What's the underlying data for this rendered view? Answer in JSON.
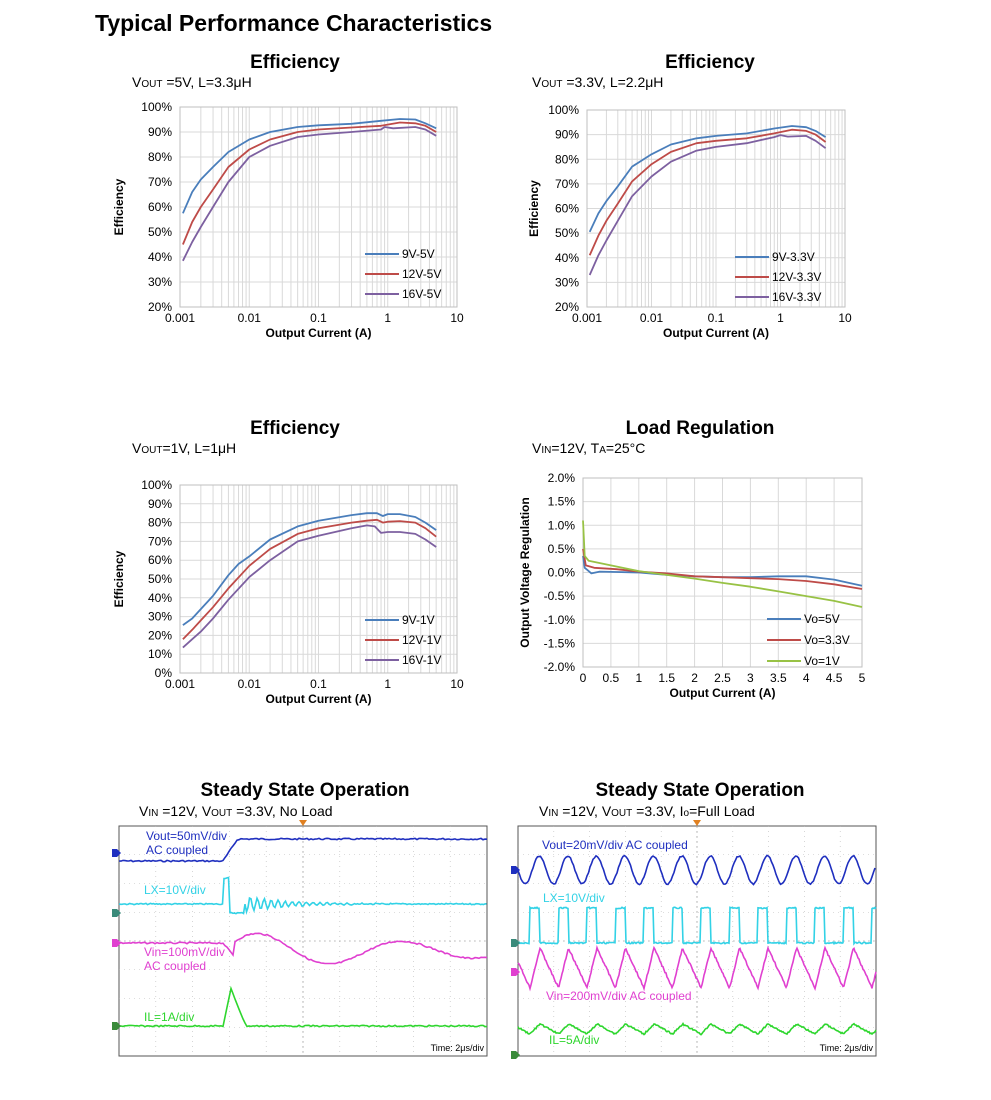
{
  "page_title": "Typical Performance Characteristics",
  "colors": {
    "blue": "#4a7ebb",
    "red": "#be4b48",
    "purple": "#7d60a0",
    "green": "#98c245",
    "grid": "#d9d9d9"
  },
  "chart_data": [
    {
      "id": "eff5v",
      "type": "line",
      "title": "Efficiency",
      "subtitle": "VOUT =5V, L=3.3μH",
      "xlabel": "Output Current (A)",
      "ylabel": "Efficiency",
      "xscale": "log",
      "xlim": [
        0.001,
        10
      ],
      "ylim": [
        20,
        100
      ],
      "xticks": [
        "0.001",
        "0.01",
        "0.1",
        "1",
        "10"
      ],
      "yticks": [
        "20%",
        "30%",
        "40%",
        "50%",
        "60%",
        "70%",
        "80%",
        "90%",
        "100%"
      ],
      "legend": "bottom-right",
      "series": [
        {
          "name": "9V-5V",
          "color": "#4a7ebb",
          "points": [
            [
              0.0011,
              57.5
            ],
            [
              0.0015,
              66
            ],
            [
              0.002,
              71
            ],
            [
              0.003,
              76
            ],
            [
              0.005,
              82
            ],
            [
              0.01,
              87
            ],
            [
              0.02,
              90
            ],
            [
              0.05,
              92
            ],
            [
              0.1,
              92.7
            ],
            [
              0.3,
              93.3
            ],
            [
              0.8,
              94.5
            ],
            [
              1.5,
              95.2
            ],
            [
              2.5,
              95
            ],
            [
              3.5,
              93.5
            ],
            [
              5,
              91.5
            ]
          ]
        },
        {
          "name": "12V-5V",
          "color": "#be4b48",
          "points": [
            [
              0.0011,
              45
            ],
            [
              0.0015,
              54
            ],
            [
              0.002,
              60
            ],
            [
              0.003,
              67
            ],
            [
              0.005,
              76
            ],
            [
              0.01,
              83
            ],
            [
              0.02,
              87
            ],
            [
              0.05,
              90
            ],
            [
              0.1,
              91
            ],
            [
              0.3,
              91.8
            ],
            [
              0.8,
              92.5
            ],
            [
              1.5,
              93.8
            ],
            [
              2.5,
              93.5
            ],
            [
              3.5,
              92.5
            ],
            [
              5,
              90
            ]
          ]
        },
        {
          "name": "16V-5V",
          "color": "#7d60a0",
          "points": [
            [
              0.0011,
              38.5
            ],
            [
              0.0015,
              46
            ],
            [
              0.002,
              52
            ],
            [
              0.003,
              60
            ],
            [
              0.005,
              70
            ],
            [
              0.01,
              80
            ],
            [
              0.02,
              84.5
            ],
            [
              0.05,
              88
            ],
            [
              0.1,
              89
            ],
            [
              0.3,
              90
            ],
            [
              0.8,
              91
            ],
            [
              0.9,
              92
            ],
            [
              1.2,
              91.5
            ],
            [
              2.5,
              92
            ],
            [
              3.5,
              91
            ],
            [
              5,
              88.5
            ]
          ]
        }
      ]
    },
    {
      "id": "eff33v",
      "type": "line",
      "title": "Efficiency",
      "subtitle": "VOUT =3.3V, L=2.2μH",
      "xlabel": "Output Current (A)",
      "ylabel": "Efficiency",
      "xscale": "log",
      "xlim": [
        0.001,
        10
      ],
      "ylim": [
        20,
        100
      ],
      "xticks": [
        "0.001",
        "0.01",
        "0.1",
        "1",
        "10"
      ],
      "yticks": [
        "20%",
        "30%",
        "40%",
        "50%",
        "60%",
        "70%",
        "80%",
        "90%",
        "100%"
      ],
      "legend": "bottom-right",
      "series": [
        {
          "name": "9V-3.3V",
          "color": "#4a7ebb",
          "points": [
            [
              0.0011,
              50.5
            ],
            [
              0.0015,
              58
            ],
            [
              0.002,
              63
            ],
            [
              0.003,
              69
            ],
            [
              0.005,
              77
            ],
            [
              0.01,
              82
            ],
            [
              0.02,
              86
            ],
            [
              0.05,
              88.5
            ],
            [
              0.1,
              89.5
            ],
            [
              0.3,
              90.5
            ],
            [
              0.8,
              92.5
            ],
            [
              1.5,
              93.5
            ],
            [
              2.5,
              93
            ],
            [
              3.5,
              91.5
            ],
            [
              5,
              89
            ]
          ]
        },
        {
          "name": "12V-3.3V",
          "color": "#be4b48",
          "points": [
            [
              0.0011,
              41
            ],
            [
              0.0015,
              49
            ],
            [
              0.002,
              55
            ],
            [
              0.003,
              62
            ],
            [
              0.005,
              71
            ],
            [
              0.01,
              78
            ],
            [
              0.02,
              83
            ],
            [
              0.05,
              86.5
            ],
            [
              0.1,
              87.5
            ],
            [
              0.3,
              88.5
            ],
            [
              0.8,
              90.5
            ],
            [
              1.5,
              92
            ],
            [
              2.5,
              91.5
            ],
            [
              3.5,
              90
            ],
            [
              5,
              87
            ]
          ]
        },
        {
          "name": "16V-3.3V",
          "color": "#7d60a0",
          "points": [
            [
              0.0011,
              33
            ],
            [
              0.0015,
              41
            ],
            [
              0.002,
              47
            ],
            [
              0.003,
              55
            ],
            [
              0.005,
              65
            ],
            [
              0.01,
              73
            ],
            [
              0.02,
              79
            ],
            [
              0.05,
              83.5
            ],
            [
              0.1,
              85
            ],
            [
              0.3,
              86.5
            ],
            [
              0.8,
              89
            ],
            [
              1.0,
              89.8
            ],
            [
              1.3,
              89.2
            ],
            [
              2.5,
              89.5
            ],
            [
              3.5,
              87.5
            ],
            [
              5,
              84.5
            ]
          ]
        }
      ]
    },
    {
      "id": "eff1v",
      "type": "line",
      "title": "Efficiency",
      "subtitle": "VOUT=1V, L=1μH",
      "xlabel": "Output Current (A)",
      "ylabel": "Efficiency",
      "xscale": "log",
      "xlim": [
        0.001,
        10
      ],
      "ylim": [
        0,
        100
      ],
      "xticks": [
        "0.001",
        "0.01",
        "0.1",
        "1",
        "10"
      ],
      "yticks": [
        "0%",
        "10%",
        "20%",
        "30%",
        "40%",
        "50%",
        "60%",
        "70%",
        "80%",
        "90%",
        "100%"
      ],
      "legend": "bottom-right",
      "series": [
        {
          "name": "9V-1V",
          "color": "#4a7ebb",
          "points": [
            [
              0.0011,
              25.5
            ],
            [
              0.0015,
              29
            ],
            [
              0.002,
              34
            ],
            [
              0.003,
              41
            ],
            [
              0.005,
              52
            ],
            [
              0.007,
              58
            ],
            [
              0.01,
              62
            ],
            [
              0.02,
              71
            ],
            [
              0.05,
              78
            ],
            [
              0.1,
              81
            ],
            [
              0.3,
              84
            ],
            [
              0.5,
              85
            ],
            [
              0.7,
              85
            ],
            [
              0.85,
              83.5
            ],
            [
              1.0,
              84.5
            ],
            [
              1.5,
              84.5
            ],
            [
              2.5,
              83
            ],
            [
              3.5,
              80
            ],
            [
              5,
              76
            ]
          ]
        },
        {
          "name": "12V-1V",
          "color": "#be4b48",
          "points": [
            [
              0.0011,
              18
            ],
            [
              0.0015,
              23
            ],
            [
              0.002,
              28
            ],
            [
              0.003,
              35
            ],
            [
              0.005,
              45
            ],
            [
              0.01,
              57
            ],
            [
              0.02,
              66
            ],
            [
              0.05,
              74
            ],
            [
              0.1,
              77
            ],
            [
              0.3,
              80
            ],
            [
              0.5,
              81
            ],
            [
              0.7,
              81.5
            ],
            [
              0.85,
              80
            ],
            [
              1.0,
              80.5
            ],
            [
              1.5,
              80.8
            ],
            [
              2.5,
              80
            ],
            [
              3.5,
              77
            ],
            [
              5,
              72.5
            ]
          ]
        },
        {
          "name": "16V-1V",
          "color": "#7d60a0",
          "points": [
            [
              0.0011,
              13.5
            ],
            [
              0.0015,
              18
            ],
            [
              0.002,
              22
            ],
            [
              0.003,
              29
            ],
            [
              0.005,
              39
            ],
            [
              0.01,
              51
            ],
            [
              0.02,
              60
            ],
            [
              0.05,
              70
            ],
            [
              0.1,
              73
            ],
            [
              0.3,
              77
            ],
            [
              0.5,
              78.5
            ],
            [
              0.65,
              78
            ],
            [
              0.8,
              74.5
            ],
            [
              1.0,
              75
            ],
            [
              1.5,
              75
            ],
            [
              2.5,
              74
            ],
            [
              3.5,
              71
            ],
            [
              5,
              67
            ]
          ]
        }
      ]
    },
    {
      "id": "loadreg",
      "type": "line",
      "title": "Load Regulation",
      "subtitle": "VIN=12V, TA=25°C",
      "xlabel": "Output Current (A)",
      "ylabel": "Output Voltage Regulation",
      "xscale": "linear",
      "xlim": [
        0,
        5
      ],
      "ylim": [
        -2.0,
        2.0
      ],
      "xticks": [
        "0",
        "0.5",
        "1",
        "1.5",
        "2",
        "2.5",
        "3",
        "3.5",
        "4",
        "4.5",
        "5"
      ],
      "yticks": [
        "-2.0%",
        "-1.5%",
        "-1.0%",
        "-0.5%",
        "0.0%",
        "0.5%",
        "1.0%",
        "1.5%",
        "2.0%"
      ],
      "legend": "bottom-right",
      "series": [
        {
          "name": "Vo=5V",
          "color": "#4a7ebb",
          "points": [
            [
              0,
              0.35
            ],
            [
              0.03,
              0.1
            ],
            [
              0.08,
              0.05
            ],
            [
              0.15,
              -0.02
            ],
            [
              0.3,
              0.02
            ],
            [
              0.6,
              0.01
            ],
            [
              1.0,
              0.0
            ],
            [
              1.5,
              -0.05
            ],
            [
              2.0,
              -0.08
            ],
            [
              2.5,
              -0.1
            ],
            [
              3.0,
              -0.1
            ],
            [
              3.5,
              -0.08
            ],
            [
              4.0,
              -0.08
            ],
            [
              4.5,
              -0.15
            ],
            [
              5,
              -0.28
            ]
          ]
        },
        {
          "name": "Vo=3.3V",
          "color": "#be4b48",
          "points": [
            [
              0,
              0.5
            ],
            [
              0.05,
              0.15
            ],
            [
              0.2,
              0.1
            ],
            [
              0.6,
              0.07
            ],
            [
              1.0,
              0.02
            ],
            [
              1.5,
              -0.02
            ],
            [
              2.0,
              -0.08
            ],
            [
              2.5,
              -0.1
            ],
            [
              3.0,
              -0.12
            ],
            [
              3.5,
              -0.14
            ],
            [
              4.0,
              -0.18
            ],
            [
              4.5,
              -0.25
            ],
            [
              5,
              -0.35
            ]
          ]
        },
        {
          "name": "Vo=1V",
          "color": "#98c245",
          "points": [
            [
              0,
              1.1
            ],
            [
              0.03,
              0.35
            ],
            [
              0.1,
              0.25
            ],
            [
              0.5,
              0.15
            ],
            [
              1.0,
              0.03
            ],
            [
              1.5,
              -0.05
            ],
            [
              2.0,
              -0.13
            ],
            [
              2.5,
              -0.22
            ],
            [
              3.0,
              -0.3
            ],
            [
              3.5,
              -0.4
            ],
            [
              4.0,
              -0.5
            ],
            [
              4.5,
              -0.6
            ],
            [
              5,
              -0.73
            ]
          ]
        }
      ]
    }
  ],
  "scopes": [
    {
      "id": "scope1",
      "title": "Steady State Operation",
      "subtitle": "VIN =12V, VOUT =3.3V, No Load",
      "time_label": "Time: 2μs/div",
      "labels": [
        {
          "text": "Vout=50mV/div",
          "color": "#1f2fbf"
        },
        {
          "text": "AC coupled",
          "color": "#1f2fbf"
        },
        {
          "text": "LX=10V/div",
          "color": "#32d2e6"
        },
        {
          "text": "Vin=100mV/div",
          "color": "#e040d0"
        },
        {
          "text": "AC coupled",
          "color": "#e040d0"
        },
        {
          "text": "IL=1A/div",
          "color": "#2ed62e"
        }
      ]
    },
    {
      "id": "scope2",
      "title": "Steady State Operation",
      "subtitle": "VIN =12V, VOUT =3.3V, Io=Full Load",
      "time_label": "Time: 2μs/div",
      "labels": [
        {
          "text": "Vout=20mV/div AC coupled",
          "color": "#1f2fbf"
        },
        {
          "text": "LX=10V/div",
          "color": "#32d2e6"
        },
        {
          "text": "Vin=200mV/div   AC coupled",
          "color": "#e040d0"
        },
        {
          "text": "IL=5A/div",
          "color": "#2ed62e"
        }
      ]
    }
  ]
}
